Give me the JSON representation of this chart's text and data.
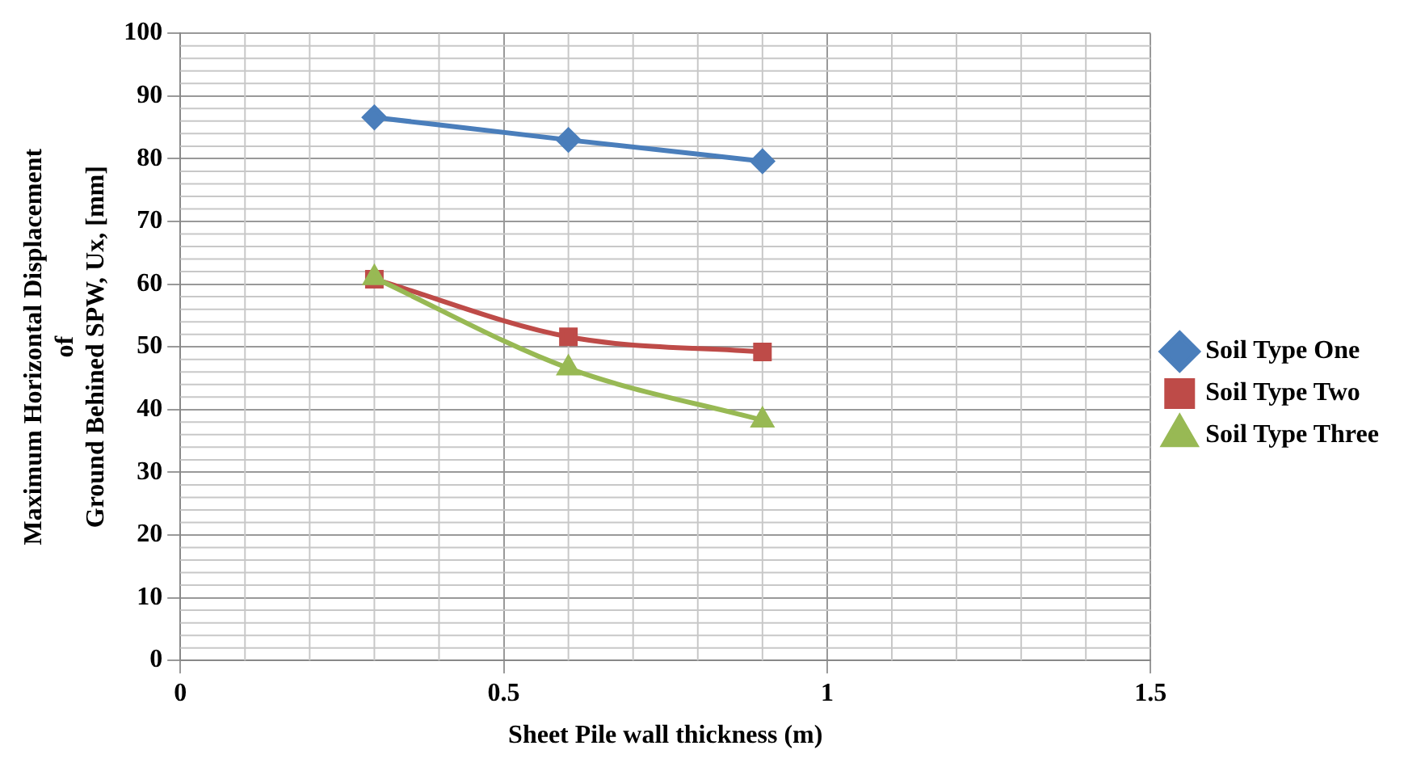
{
  "chart_data": {
    "type": "line",
    "xlabel": "Sheet Pile wall thickness (m)",
    "ylabel": "Maximum Horizontal Displacement\nof\nGround Behined SPW, Ux, [mm]",
    "xlim": [
      0,
      1.5
    ],
    "xticks": [
      0,
      0.5,
      1,
      1.5
    ],
    "ylim": [
      0,
      100
    ],
    "yticks": [
      0,
      10,
      20,
      30,
      40,
      50,
      60,
      70,
      80,
      90,
      100
    ],
    "grid": true,
    "legend": "right",
    "series": [
      {
        "name": "Soil Type One",
        "color": "#4a7ebb",
        "marker": "diamond",
        "x": [
          0.3,
          0.6,
          0.9
        ],
        "values": [
          86.6,
          83,
          79.6
        ]
      },
      {
        "name": "Soil Type Two",
        "color": "#be4b48",
        "marker": "square",
        "x": [
          0.3,
          0.6,
          0.9
        ],
        "values": [
          60.8,
          51.6,
          49.2
        ]
      },
      {
        "name": "Soil Type Three",
        "color": "#98b954",
        "marker": "triangle",
        "x": [
          0.3,
          0.6,
          0.9
        ],
        "values": [
          61,
          46.6,
          38.3
        ]
      }
    ]
  }
}
